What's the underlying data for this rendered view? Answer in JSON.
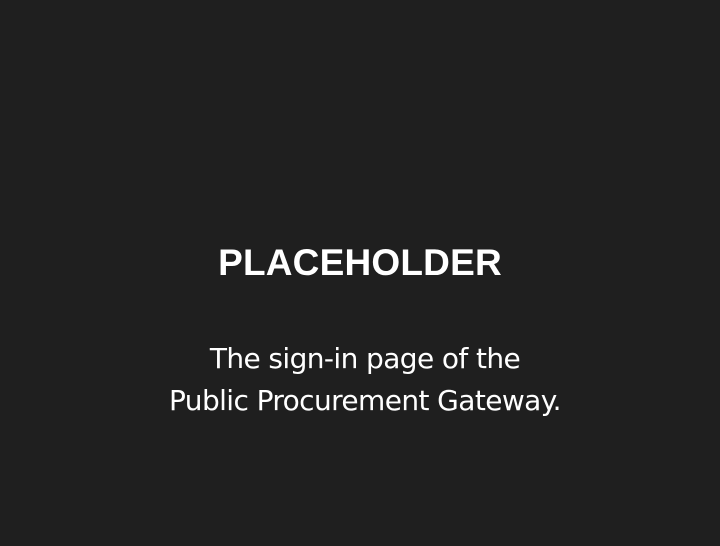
{
  "placeholder": {
    "title": "PLACEHOLDER",
    "description_lines": [
      "The sign-in page of the",
      "Public Procurement Gateway."
    ]
  }
}
